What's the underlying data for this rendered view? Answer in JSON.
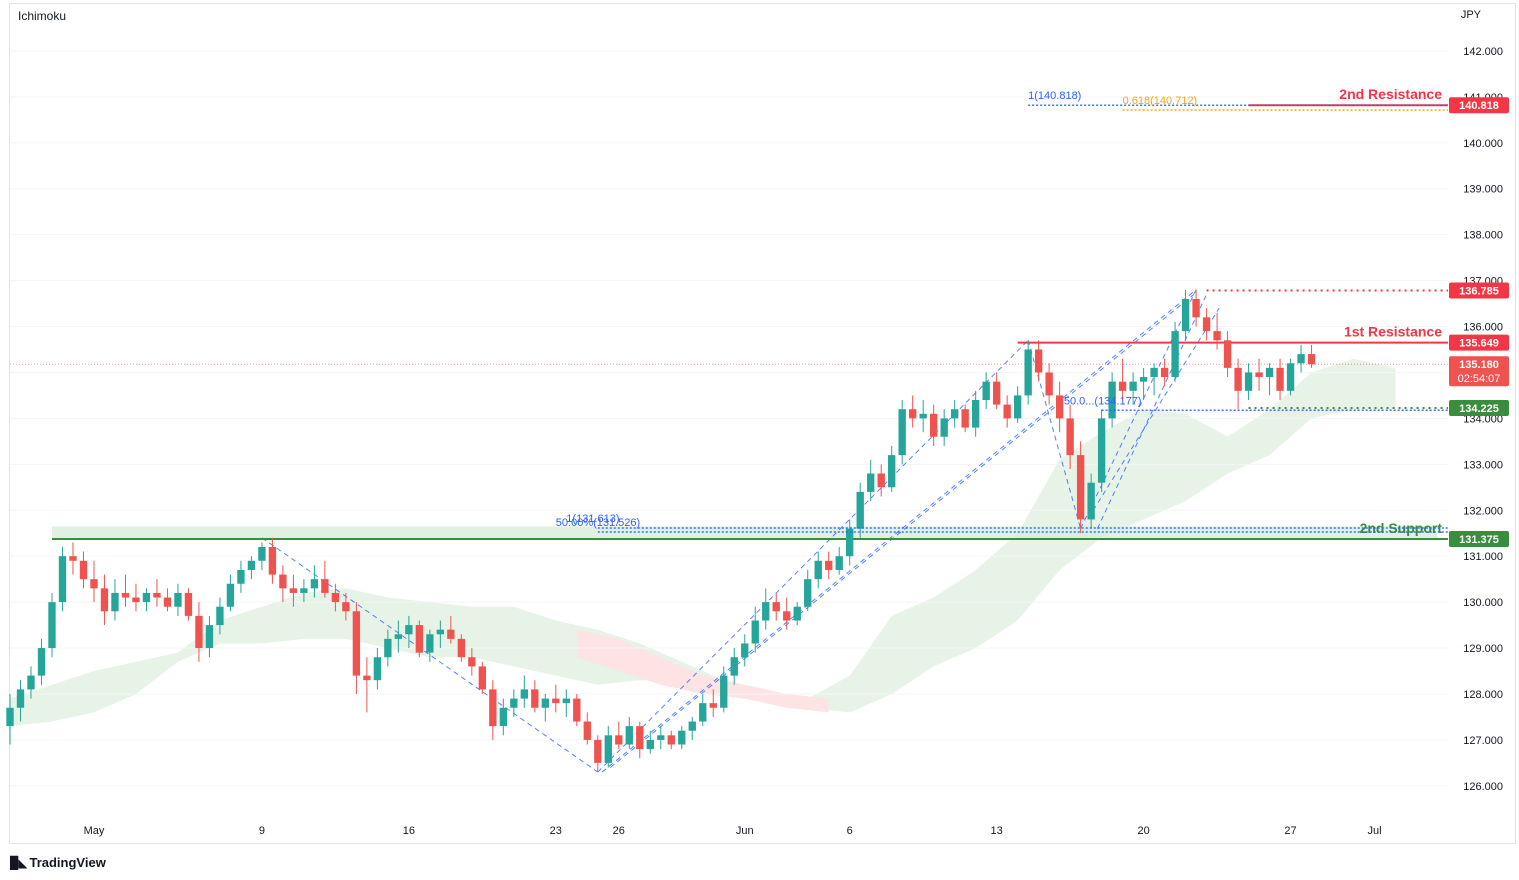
{
  "header": {
    "indicator": "Ichimoku",
    "currency": "JPY"
  },
  "footer": {
    "brand": "TradingView",
    "logo_icon": "tradingview-logo-icon"
  },
  "colors": {
    "bull": "#26a69a",
    "bear": "#ef5350",
    "resistance": "#f23645",
    "support": "#388e3c",
    "fib_blue": "#2962ff",
    "fib_orange": "#f7a21b",
    "cloud_green": "#e6f3e6",
    "cloud_red": "#fde3e3"
  },
  "chart_data": {
    "type": "candlestick",
    "y_axis": {
      "range": [
        125.3,
        143.0
      ],
      "ticks": [
        "142.000",
        "141.000",
        "140.000",
        "139.000",
        "138.000",
        "137.000",
        "136.000",
        "135.000",
        "134.000",
        "133.000",
        "132.000",
        "131.000",
        "130.000",
        "129.000",
        "128.000",
        "127.000",
        "126.000"
      ]
    },
    "x_axis": {
      "range_days": [
        -4.0,
        64.5
      ],
      "ticks": [
        {
          "label": "May",
          "day": 0
        },
        {
          "label": "9",
          "day": 8
        },
        {
          "label": "16",
          "day": 15
        },
        {
          "label": "23",
          "day": 22
        },
        {
          "label": "26",
          "day": 25
        },
        {
          "label": "Jun",
          "day": 31
        },
        {
          "label": "6",
          "day": 36
        },
        {
          "label": "13",
          "day": 43
        },
        {
          "label": "20",
          "day": 50
        },
        {
          "label": "27",
          "day": 57
        },
        {
          "label": "Jul",
          "day": 61
        }
      ]
    },
    "price_labels": [
      {
        "value": 140.818,
        "text": "140.818",
        "kind": "resistance"
      },
      {
        "value": 136.785,
        "text": "136.785",
        "kind": "resistance"
      },
      {
        "value": 135.649,
        "text": "135.649",
        "kind": "resistance"
      },
      {
        "value": 135.18,
        "text": "135.180",
        "countdown": "02:54:07",
        "kind": "current"
      },
      {
        "value": 134.225,
        "text": "134.225",
        "kind": "support"
      },
      {
        "value": 131.375,
        "text": "131.375",
        "kind": "support"
      }
    ],
    "levels": [
      {
        "name": "2nd Resistance",
        "value": 140.818,
        "style": "solid",
        "kind": "resistance",
        "from_day": 55
      },
      {
        "name": "",
        "value": 136.785,
        "style": "dotted",
        "kind": "resistance",
        "from_day": 53
      },
      {
        "name": "1st Resistance",
        "value": 135.649,
        "style": "solid",
        "kind": "resistance",
        "from_day": 44
      },
      {
        "name": "",
        "value": 134.225,
        "style": "dotted",
        "kind": "support",
        "from_day": 55
      },
      {
        "name": "2nd Support",
        "value": 131.375,
        "style": "solid",
        "kind": "support",
        "from_day": -2
      }
    ],
    "fib_annotations": [
      {
        "text": "1(140.818)",
        "value": 140.818,
        "day": 44.5
      },
      {
        "text": "0.618(140.712)",
        "value": 140.712,
        "day": 49.0
      },
      {
        "text": "1(131.613)",
        "value": 131.613,
        "day": 22.5
      },
      {
        "text": "50.00%(131.526)",
        "value": 131.526,
        "day": 22.0
      },
      {
        "text": "50.0...(134.177)",
        "value": 134.177,
        "day": 46.2
      }
    ],
    "support_zone": {
      "top": 131.65,
      "bottom": 131.375,
      "from_day": -2,
      "to_day": 64
    },
    "current_price": 135.18,
    "candles": [
      [
        -4,
        127.3,
        128.0,
        126.9,
        127.7
      ],
      [
        -3.5,
        127.7,
        128.3,
        127.4,
        128.1
      ],
      [
        -3,
        128.1,
        128.6,
        127.9,
        128.4
      ],
      [
        -2.5,
        128.4,
        129.2,
        128.2,
        129.0
      ],
      [
        -2,
        129.0,
        130.2,
        128.8,
        130.0
      ],
      [
        -1.5,
        130.0,
        131.2,
        129.8,
        131.0
      ],
      [
        -1,
        131.0,
        131.3,
        130.6,
        130.9
      ],
      [
        -0.5,
        130.9,
        131.1,
        130.3,
        130.5
      ],
      [
        0,
        130.5,
        130.9,
        130.0,
        130.3
      ],
      [
        0.5,
        130.3,
        130.6,
        129.5,
        129.8
      ],
      [
        1,
        129.8,
        130.5,
        129.6,
        130.2
      ],
      [
        1.5,
        130.2,
        130.6,
        129.9,
        130.1
      ],
      [
        2,
        130.1,
        130.4,
        129.8,
        130.0
      ],
      [
        2.5,
        130.0,
        130.3,
        129.8,
        130.2
      ],
      [
        3,
        130.2,
        130.5,
        129.9,
        130.1
      ],
      [
        3.5,
        130.1,
        130.3,
        129.8,
        129.9
      ],
      [
        4,
        129.9,
        130.4,
        129.7,
        130.2
      ],
      [
        4.5,
        130.2,
        130.3,
        129.6,
        129.7
      ],
      [
        5,
        129.7,
        130.0,
        128.7,
        129.0
      ],
      [
        5.5,
        129.0,
        129.7,
        128.8,
        129.5
      ],
      [
        6,
        129.5,
        130.1,
        129.3,
        129.9
      ],
      [
        6.5,
        129.9,
        130.6,
        129.8,
        130.4
      ],
      [
        7,
        130.4,
        130.9,
        130.2,
        130.7
      ],
      [
        7.5,
        130.7,
        131.0,
        130.5,
        130.9
      ],
      [
        8,
        130.9,
        131.3,
        130.7,
        131.2
      ],
      [
        8.5,
        131.2,
        131.4,
        130.4,
        130.6
      ],
      [
        9,
        130.6,
        130.8,
        130.0,
        130.3
      ],
      [
        9.5,
        130.3,
        130.6,
        129.9,
        130.2
      ],
      [
        10,
        130.2,
        130.5,
        130.0,
        130.3
      ],
      [
        10.5,
        130.3,
        130.8,
        130.1,
        130.5
      ],
      [
        11,
        130.5,
        130.9,
        130.1,
        130.2
      ],
      [
        11.5,
        130.2,
        130.4,
        129.8,
        130.0
      ],
      [
        12,
        130.0,
        130.2,
        129.6,
        129.8
      ],
      [
        12.5,
        129.8,
        130.0,
        128.0,
        128.4
      ],
      [
        13,
        128.4,
        128.8,
        127.6,
        128.3
      ],
      [
        13.5,
        128.3,
        129.0,
        128.1,
        128.8
      ],
      [
        14,
        128.8,
        129.4,
        128.6,
        129.2
      ],
      [
        14.5,
        129.2,
        129.6,
        128.9,
        129.3
      ],
      [
        15,
        129.3,
        129.7,
        129.0,
        129.5
      ],
      [
        15.5,
        129.5,
        129.6,
        128.8,
        128.9
      ],
      [
        16,
        128.9,
        129.4,
        128.7,
        129.3
      ],
      [
        16.5,
        129.3,
        129.6,
        129.0,
        129.4
      ],
      [
        17,
        129.4,
        129.7,
        129.1,
        129.2
      ],
      [
        17.5,
        129.2,
        129.3,
        128.7,
        128.8
      ],
      [
        18,
        128.8,
        129.0,
        128.4,
        128.6
      ],
      [
        18.5,
        128.6,
        128.7,
        128.0,
        128.1
      ],
      [
        19,
        128.1,
        128.3,
        127.0,
        127.3
      ],
      [
        19.5,
        127.3,
        127.9,
        127.1,
        127.7
      ],
      [
        20,
        127.7,
        128.1,
        127.5,
        127.9
      ],
      [
        20.5,
        127.9,
        128.4,
        127.7,
        128.1
      ],
      [
        21,
        128.1,
        128.3,
        127.6,
        127.7
      ],
      [
        21.5,
        127.7,
        128.0,
        127.4,
        127.9
      ],
      [
        22,
        127.9,
        128.2,
        127.6,
        127.8
      ],
      [
        22.5,
        127.8,
        128.1,
        127.5,
        127.9
      ],
      [
        23,
        127.9,
        128.0,
        127.3,
        127.4
      ],
      [
        23.5,
        127.4,
        127.6,
        126.9,
        127.0
      ],
      [
        24,
        127.0,
        127.1,
        126.3,
        126.5
      ],
      [
        24.5,
        126.5,
        127.3,
        126.4,
        127.1
      ],
      [
        25,
        127.1,
        127.4,
        126.8,
        126.9
      ],
      [
        25.5,
        126.9,
        127.5,
        126.8,
        127.3
      ],
      [
        26,
        127.3,
        127.4,
        126.6,
        126.8
      ],
      [
        26.5,
        126.8,
        127.2,
        126.7,
        127.0
      ],
      [
        27,
        127.0,
        127.3,
        126.8,
        127.1
      ],
      [
        27.5,
        127.1,
        127.2,
        126.8,
        126.9
      ],
      [
        28,
        126.9,
        127.3,
        126.8,
        127.2
      ],
      [
        28.5,
        127.2,
        127.5,
        127.0,
        127.4
      ],
      [
        29,
        127.4,
        128.0,
        127.3,
        127.8
      ],
      [
        29.5,
        127.8,
        128.1,
        127.5,
        127.7
      ],
      [
        30,
        127.7,
        128.6,
        127.6,
        128.4
      ],
      [
        30.5,
        128.4,
        129.0,
        128.2,
        128.8
      ],
      [
        31,
        128.8,
        129.3,
        128.6,
        129.1
      ],
      [
        31.5,
        129.1,
        129.9,
        128.9,
        129.6
      ],
      [
        32,
        129.6,
        130.3,
        129.4,
        130.0
      ],
      [
        32.5,
        130.0,
        130.2,
        129.6,
        129.8
      ],
      [
        33,
        129.8,
        130.1,
        129.4,
        129.6
      ],
      [
        33.5,
        129.6,
        130.0,
        129.5,
        129.9
      ],
      [
        34,
        129.9,
        130.7,
        129.8,
        130.5
      ],
      [
        34.5,
        130.5,
        131.1,
        130.3,
        130.9
      ],
      [
        35,
        130.9,
        131.1,
        130.5,
        130.7
      ],
      [
        35.5,
        130.7,
        131.2,
        130.6,
        131.0
      ],
      [
        36,
        131.0,
        131.8,
        130.8,
        131.6
      ],
      [
        36.5,
        131.6,
        132.6,
        131.4,
        132.4
      ],
      [
        37,
        132.4,
        133.1,
        132.2,
        132.8
      ],
      [
        37.5,
        132.8,
        133.0,
        132.3,
        132.5
      ],
      [
        38,
        132.5,
        133.4,
        132.4,
        133.2
      ],
      [
        38.5,
        133.2,
        134.4,
        133.0,
        134.2
      ],
      [
        39,
        134.2,
        134.5,
        133.8,
        134.0
      ],
      [
        39.5,
        134.0,
        134.4,
        133.7,
        134.1
      ],
      [
        40,
        134.1,
        134.3,
        133.4,
        133.6
      ],
      [
        40.5,
        133.6,
        134.2,
        133.4,
        134.0
      ],
      [
        41,
        134.0,
        134.4,
        133.8,
        134.2
      ],
      [
        41.5,
        134.2,
        134.3,
        133.7,
        133.8
      ],
      [
        42,
        133.8,
        134.6,
        133.6,
        134.4
      ],
      [
        42.5,
        134.4,
        135.0,
        134.2,
        134.8
      ],
      [
        43,
        134.8,
        135.0,
        134.2,
        134.3
      ],
      [
        43.5,
        134.3,
        134.5,
        133.8,
        134.0
      ],
      [
        44,
        134.0,
        134.7,
        133.9,
        134.5
      ],
      [
        44.5,
        134.5,
        135.7,
        134.3,
        135.5
      ],
      [
        45,
        135.5,
        135.7,
        134.8,
        135.0
      ],
      [
        45.5,
        135.0,
        135.2,
        134.3,
        134.5
      ],
      [
        46,
        134.5,
        134.8,
        133.7,
        134.0
      ],
      [
        46.5,
        134.0,
        134.3,
        132.9,
        133.2
      ],
      [
        47,
        133.2,
        133.5,
        131.5,
        131.8
      ],
      [
        47.5,
        131.8,
        132.8,
        131.6,
        132.6
      ],
      [
        48,
        132.6,
        134.2,
        132.4,
        134.0
      ],
      [
        48.5,
        134.0,
        135.0,
        133.8,
        134.8
      ],
      [
        49,
        134.8,
        135.3,
        134.4,
        134.6
      ],
      [
        49.5,
        134.6,
        135.0,
        134.3,
        134.8
      ],
      [
        50,
        134.8,
        135.1,
        134.4,
        134.9
      ],
      [
        50.5,
        134.9,
        135.2,
        134.5,
        135.1
      ],
      [
        51,
        135.1,
        135.3,
        134.7,
        134.9
      ],
      [
        51.5,
        134.9,
        136.1,
        134.8,
        135.9
      ],
      [
        52,
        135.9,
        136.8,
        135.7,
        136.6
      ],
      [
        52.5,
        136.6,
        136.8,
        136.0,
        136.2
      ],
      [
        53,
        136.2,
        136.4,
        135.7,
        135.9
      ],
      [
        53.5,
        135.9,
        136.3,
        135.5,
        135.7
      ],
      [
        54,
        135.7,
        135.9,
        134.9,
        135.1
      ],
      [
        54.5,
        135.1,
        135.3,
        134.2,
        134.6
      ],
      [
        55,
        134.6,
        135.2,
        134.4,
        135.0
      ],
      [
        55.5,
        135.0,
        135.3,
        134.6,
        134.9
      ],
      [
        56,
        134.9,
        135.2,
        134.5,
        135.1
      ],
      [
        56.5,
        135.1,
        135.3,
        134.4,
        134.6
      ],
      [
        57,
        134.6,
        135.3,
        134.5,
        135.2
      ],
      [
        57.5,
        135.2,
        135.6,
        135.0,
        135.4
      ],
      [
        58,
        135.4,
        135.6,
        135.1,
        135.18
      ]
    ]
  }
}
